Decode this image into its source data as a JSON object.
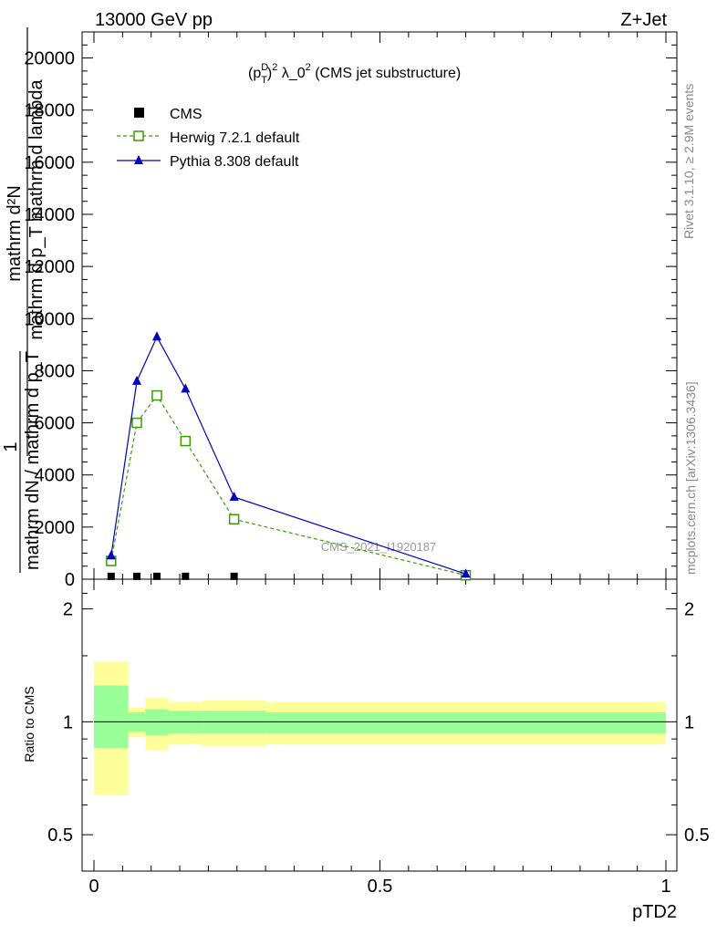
{
  "header": {
    "left": "13000 GeV pp",
    "right": "Z+Jet"
  },
  "side_labels": {
    "rivet": "Rivet 3.1.10, ≥ 2.9M events",
    "mcplots": "mcplots.cern.ch [arXiv:1306.3436]"
  },
  "main_plot": {
    "title_parts": {
      "p": "(p",
      "sup1": "D",
      "sub1": "T",
      "close": ")",
      "sup2": "2",
      "lambda": " λ_0",
      "sup3": "2",
      "rest": " (CMS jet substructure)"
    },
    "ylabel_top": "mathrm d²N",
    "ylabel_top_b": "mathrm d p_T mathrm d lambda",
    "ylabel_frac_num": "1",
    "ylabel_frac_den": "mathrm dN / mathrm d p_T",
    "watermark": "CMS_2021_I1920187",
    "yticks": [
      "0",
      "2000",
      "4000",
      "6000",
      "8000",
      "10000",
      "12000",
      "14000",
      "16000",
      "18000",
      "20000"
    ]
  },
  "ratio_plot": {
    "ylabel": "Ratio to CMS",
    "yticks": [
      "0.5",
      "1",
      "2"
    ],
    "xlabel": "pTD2",
    "xticks": [
      "0",
      "0.5",
      "1"
    ]
  },
  "legend": [
    {
      "label": "CMS",
      "marker": "square-filled",
      "color": "#000000"
    },
    {
      "label": "Herwig 7.2.1 default",
      "marker": "square-open",
      "color": "#3a9c00"
    },
    {
      "label": "Pythia 8.308 default",
      "marker": "triangle",
      "color": "#0000cc"
    }
  ],
  "chart_data": {
    "type": "line",
    "xlabel": "pTD2",
    "xlim": [
      0,
      1
    ],
    "ylim": [
      0,
      21000
    ],
    "ratio_ylim": [
      0.4,
      2.4
    ],
    "ratio_log": true,
    "x": [
      0.03,
      0.075,
      0.11,
      0.16,
      0.245,
      0.65
    ],
    "series": [
      {
        "name": "CMS",
        "values": [
          40,
          40,
          40,
          40,
          40,
          40
        ]
      },
      {
        "name": "Herwig 7.2.1 default",
        "values": [
          700,
          6000,
          7050,
          5300,
          2300,
          150
        ]
      },
      {
        "name": "Pythia 8.308 default",
        "values": [
          900,
          7600,
          9300,
          7300,
          3150,
          200
        ]
      }
    ],
    "ratio_bands": {
      "x_edges": [
        0.0,
        0.06,
        0.09,
        0.13,
        0.19,
        0.3,
        1.0
      ],
      "inner": [
        [
          0.85,
          1.25
        ],
        [
          0.94,
          1.06
        ],
        [
          0.92,
          1.08
        ],
        [
          0.93,
          1.07
        ],
        [
          0.93,
          1.07
        ],
        [
          0.93,
          1.06
        ]
      ],
      "outer": [
        [
          0.64,
          1.45
        ],
        [
          0.91,
          1.09
        ],
        [
          0.84,
          1.16
        ],
        [
          0.87,
          1.13
        ],
        [
          0.86,
          1.14
        ],
        [
          0.87,
          1.13
        ]
      ]
    }
  }
}
